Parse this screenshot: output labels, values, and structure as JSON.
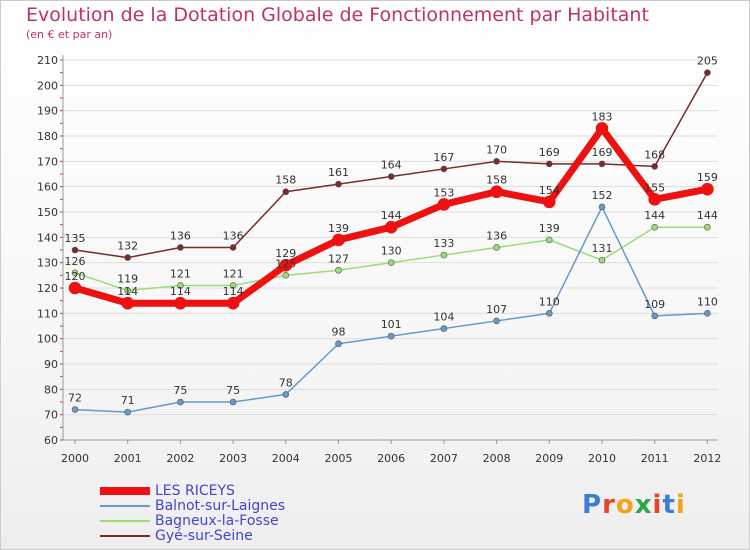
{
  "title": "Evolution de la Dotation Globale de Fonctionnement par Habitant",
  "subtitle": "(en € et par an)",
  "logo": {
    "text": "Proxiti",
    "letters": [
      "P",
      "r",
      "o",
      "x",
      "i",
      "t",
      "i"
    ],
    "colors": [
      "#3a7fd5",
      "#e8432b",
      "#f2a31b",
      "#2aa84a",
      "#e8432b",
      "#3a7fd5",
      "#f2a31b"
    ]
  },
  "chart_data": {
    "type": "line",
    "title": "Evolution de la Dotation Globale de Fonctionnement par Habitant",
    "subtitle": "(en € et par an)",
    "xlabel": "",
    "ylabel": "",
    "ylim": [
      60,
      210
    ],
    "yticks": [
      60,
      70,
      80,
      90,
      100,
      110,
      120,
      130,
      140,
      150,
      160,
      170,
      180,
      190,
      200,
      210
    ],
    "categories": [
      "2000",
      "2001",
      "2002",
      "2003",
      "2004",
      "2005",
      "2006",
      "2007",
      "2008",
      "2009",
      "2010",
      "2011",
      "2012"
    ],
    "legend_position": "bottom-left",
    "series": [
      {
        "name": "Gyé-sur-Seine",
        "color": "#7a2a2a",
        "width": 1.5,
        "marker": 3,
        "values": [
          135,
          132,
          136,
          136,
          158,
          161,
          164,
          167,
          170,
          169,
          169,
          168,
          205
        ]
      },
      {
        "name": "Bagneux-la-Fosse",
        "color": "#99dd77",
        "width": 1.5,
        "marker": 3,
        "values": [
          126,
          119,
          121,
          121,
          125,
          127,
          130,
          133,
          136,
          139,
          131,
          144,
          144
        ]
      },
      {
        "name": "Balnot-sur-Laignes",
        "color": "#6699cc",
        "width": 1.5,
        "marker": 3,
        "values": [
          72,
          71,
          75,
          75,
          78,
          98,
          101,
          104,
          107,
          110,
          152,
          109,
          110
        ]
      },
      {
        "name": "LES RICEYS",
        "color": "#ee1111",
        "width": 7,
        "marker": 6,
        "values": [
          120,
          114,
          114,
          114,
          129,
          139,
          144,
          153,
          158,
          154,
          183,
          155,
          159
        ]
      }
    ],
    "legend_order": [
      "LES RICEYS",
      "Balnot-sur-Laignes",
      "Bagneux-la-Fosse",
      "Gyé-sur-Seine"
    ]
  }
}
